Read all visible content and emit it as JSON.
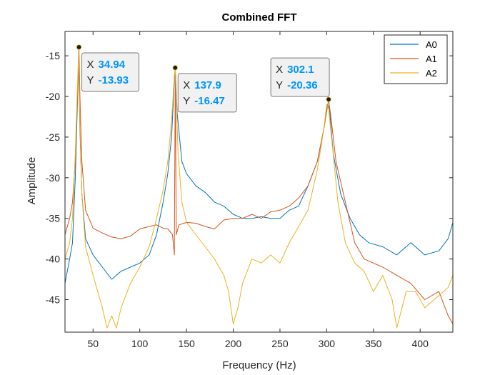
{
  "chart_data": {
    "type": "line",
    "title": "Combined FFT",
    "xlabel": "Frequency (Hz)",
    "ylabel": "Amplitude",
    "xlim": [
      20,
      435
    ],
    "ylim": [
      -49,
      -12
    ],
    "xticks": [
      50,
      100,
      150,
      200,
      250,
      300,
      350,
      400
    ],
    "yticks": [
      -45,
      -40,
      -35,
      -30,
      -25,
      -20,
      -15
    ],
    "grid": false,
    "legend_position": "top-right",
    "series": [
      {
        "name": "A0",
        "color": "#0072BD",
        "points": [
          [
            20,
            -43
          ],
          [
            25,
            -40
          ],
          [
            28,
            -38
          ],
          [
            31,
            -30
          ],
          [
            33,
            -22
          ],
          [
            34.5,
            -15.5
          ],
          [
            36,
            -24
          ],
          [
            38,
            -32
          ],
          [
            42,
            -37.5
          ],
          [
            50,
            -39.5
          ],
          [
            60,
            -41
          ],
          [
            70,
            -42.5
          ],
          [
            80,
            -41.5
          ],
          [
            90,
            -41
          ],
          [
            100,
            -40.5
          ],
          [
            110,
            -39.5
          ],
          [
            118,
            -37
          ],
          [
            125,
            -33
          ],
          [
            130,
            -29.5
          ],
          [
            134,
            -25
          ],
          [
            137,
            -18
          ],
          [
            138,
            -16.6
          ],
          [
            140,
            -22
          ],
          [
            145,
            -28
          ],
          [
            150,
            -29.5
          ],
          [
            160,
            -31
          ],
          [
            170,
            -31.8
          ],
          [
            180,
            -33
          ],
          [
            190,
            -33.5
          ],
          [
            200,
            -34.5
          ],
          [
            210,
            -35
          ],
          [
            220,
            -35
          ],
          [
            230,
            -34.8
          ],
          [
            240,
            -35
          ],
          [
            250,
            -35
          ],
          [
            260,
            -34
          ],
          [
            270,
            -33.5
          ],
          [
            280,
            -31
          ],
          [
            290,
            -28
          ],
          [
            297,
            -24
          ],
          [
            301,
            -21
          ],
          [
            303,
            -21.5
          ],
          [
            307,
            -27
          ],
          [
            315,
            -32
          ],
          [
            325,
            -35
          ],
          [
            335,
            -37
          ],
          [
            345,
            -38
          ],
          [
            360,
            -38.5
          ],
          [
            375,
            -39.5
          ],
          [
            390,
            -38
          ],
          [
            405,
            -39.5
          ],
          [
            420,
            -39
          ],
          [
            430,
            -37.5
          ],
          [
            435,
            -35.5
          ]
        ]
      },
      {
        "name": "A1",
        "color": "#D95319",
        "points": [
          [
            20,
            -37
          ],
          [
            25,
            -35
          ],
          [
            28,
            -33
          ],
          [
            31,
            -28
          ],
          [
            33,
            -21
          ],
          [
            34.94,
            -13.93
          ],
          [
            36,
            -20
          ],
          [
            38,
            -28
          ],
          [
            42,
            -34
          ],
          [
            50,
            -36.2
          ],
          [
            60,
            -36.8
          ],
          [
            70,
            -37.3
          ],
          [
            80,
            -37.5
          ],
          [
            90,
            -37.2
          ],
          [
            100,
            -36.3
          ],
          [
            110,
            -36
          ],
          [
            118,
            -35.8
          ],
          [
            125,
            -36.2
          ],
          [
            130,
            -36.3
          ],
          [
            135,
            -37
          ],
          [
            137,
            -39.5
          ],
          [
            138,
            -16.8
          ],
          [
            139,
            -37
          ],
          [
            142,
            -35.8
          ],
          [
            150,
            -35.5
          ],
          [
            160,
            -35.6
          ],
          [
            170,
            -36
          ],
          [
            180,
            -36.3
          ],
          [
            190,
            -35.2
          ],
          [
            200,
            -35
          ],
          [
            210,
            -35
          ],
          [
            220,
            -34.5
          ],
          [
            230,
            -35
          ],
          [
            240,
            -34.2
          ],
          [
            250,
            -34
          ],
          [
            260,
            -33.5
          ],
          [
            270,
            -32.5
          ],
          [
            280,
            -31
          ],
          [
            290,
            -28
          ],
          [
            297,
            -24
          ],
          [
            302.1,
            -20.36
          ],
          [
            305,
            -23
          ],
          [
            310,
            -28
          ],
          [
            320,
            -33
          ],
          [
            330,
            -38
          ],
          [
            340,
            -40
          ],
          [
            350,
            -40.5
          ],
          [
            360,
            -41
          ],
          [
            375,
            -42
          ],
          [
            390,
            -43
          ],
          [
            405,
            -45
          ],
          [
            420,
            -44
          ],
          [
            430,
            -47
          ],
          [
            435,
            -48
          ]
        ]
      },
      {
        "name": "A2",
        "color": "#EDB120",
        "points": [
          [
            20,
            -40
          ],
          [
            25,
            -38
          ],
          [
            28,
            -35
          ],
          [
            31,
            -27
          ],
          [
            33,
            -20
          ],
          [
            34.5,
            -14.5
          ],
          [
            36,
            -23
          ],
          [
            38,
            -32
          ],
          [
            42,
            -38.5
          ],
          [
            50,
            -42
          ],
          [
            55,
            -44
          ],
          [
            60,
            -46
          ],
          [
            65,
            -48.5
          ],
          [
            70,
            -47
          ],
          [
            75,
            -48.5
          ],
          [
            80,
            -46
          ],
          [
            90,
            -43
          ],
          [
            100,
            -41
          ],
          [
            110,
            -38.5
          ],
          [
            118,
            -35
          ],
          [
            125,
            -31.5
          ],
          [
            130,
            -28
          ],
          [
            134,
            -23
          ],
          [
            137,
            -17.5
          ],
          [
            137.9,
            -16.47
          ],
          [
            139,
            -20
          ],
          [
            141,
            -27
          ],
          [
            145,
            -33
          ],
          [
            150,
            -35.5
          ],
          [
            160,
            -37
          ],
          [
            170,
            -38.5
          ],
          [
            180,
            -40
          ],
          [
            190,
            -42
          ],
          [
            195,
            -44
          ],
          [
            200,
            -48
          ],
          [
            205,
            -46
          ],
          [
            210,
            -43
          ],
          [
            220,
            -40
          ],
          [
            230,
            -40.5
          ],
          [
            240,
            -39.5
          ],
          [
            250,
            -40.5
          ],
          [
            260,
            -38
          ],
          [
            270,
            -36
          ],
          [
            280,
            -34
          ],
          [
            290,
            -29
          ],
          [
            297,
            -24
          ],
          [
            300,
            -21
          ],
          [
            302,
            -21.5
          ],
          [
            306,
            -26
          ],
          [
            312,
            -33
          ],
          [
            320,
            -38
          ],
          [
            330,
            -40.5
          ],
          [
            340,
            -41.5
          ],
          [
            350,
            -44
          ],
          [
            360,
            -42
          ],
          [
            370,
            -45
          ],
          [
            375,
            -48.5
          ],
          [
            385,
            -44
          ],
          [
            395,
            -44
          ],
          [
            405,
            -46
          ],
          [
            415,
            -45
          ],
          [
            425,
            -44
          ],
          [
            430,
            -43.5
          ],
          [
            435,
            -42
          ]
        ]
      }
    ],
    "datatips": [
      {
        "x": 34.94,
        "y": -13.93,
        "x_label": "X",
        "y_label": "Y",
        "x_text": "34.94",
        "y_text": "-13.93"
      },
      {
        "x": 137.9,
        "y": -16.47,
        "x_label": "X",
        "y_label": "Y",
        "x_text": "137.9",
        "y_text": "-16.47"
      },
      {
        "x": 302.1,
        "y": -20.36,
        "x_label": "X",
        "y_label": "Y",
        "x_text": "302.1",
        "y_text": "-20.36"
      }
    ]
  }
}
